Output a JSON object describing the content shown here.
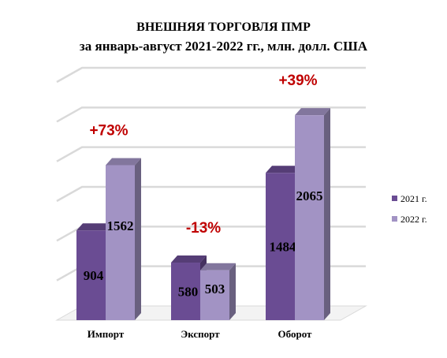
{
  "chart_data": {
    "type": "bar",
    "title": "ВНЕШНЯЯ ТОРГОВЛЯ ПМР",
    "subtitle": "за январь-август  2021-2022 гг., млн. долл. США",
    "categories": [
      "Импорт",
      "Экспорт",
      "Оборот"
    ],
    "series": [
      {
        "name": "2021 г.",
        "values": [
          904,
          580,
          1484
        ]
      },
      {
        "name": "2022 г.",
        "values": [
          1562,
          503,
          2065
        ]
      }
    ],
    "annotations": [
      "+73%",
      "-13%",
      "+39%"
    ],
    "ylim": [
      0,
      2400
    ],
    "grid": true,
    "legend_position": "right",
    "colors": {
      "series_2021": "#6a4c93",
      "series_2022": "#a293c4",
      "annotation": "#c00000",
      "grid": "#d9d9d9"
    }
  }
}
